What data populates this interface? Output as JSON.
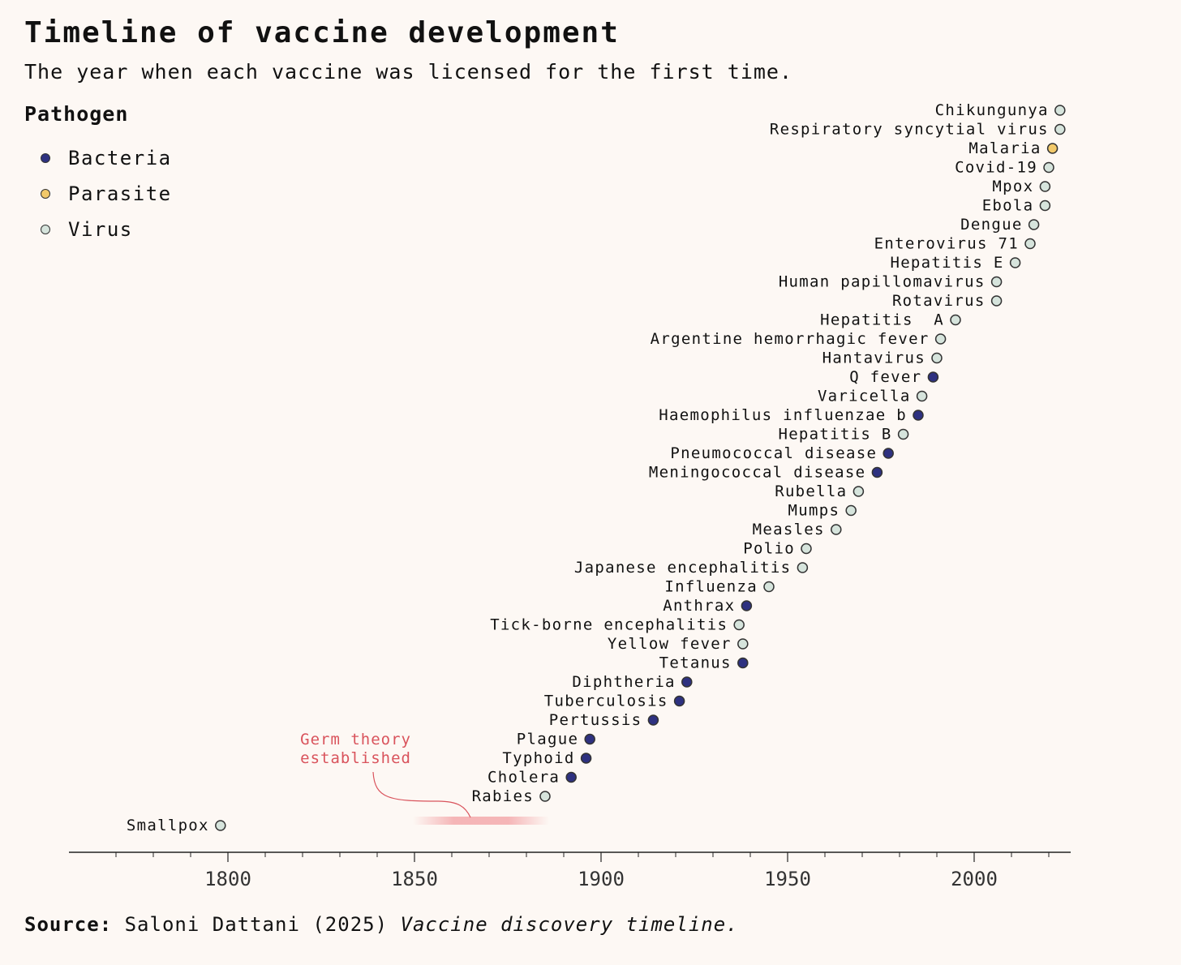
{
  "header": {
    "title": "Timeline of vaccine development",
    "subtitle": "The year when each vaccine was licensed for the first time."
  },
  "legend": {
    "title": "Pathogen",
    "items": [
      {
        "label": "Bacteria",
        "color": "#2e3180"
      },
      {
        "label": "Parasite",
        "color": "#f2c96a"
      },
      {
        "label": "Virus",
        "color": "#d6e4dc"
      }
    ]
  },
  "footer": {
    "source_label": "Source:",
    "source_text": "Saloni Dattani (2025)",
    "source_title": "Vaccine discovery timeline."
  },
  "chart_data": {
    "type": "scatter",
    "title": "Timeline of vaccine development",
    "subtitle": "The year when each vaccine was licensed for the first time.",
    "xlabel": "",
    "ylabel": "",
    "xlim": [
      1757,
      2026
    ],
    "xticks": [
      1800,
      1850,
      1900,
      1950,
      2000
    ],
    "x_minor_step": 10,
    "grid": false,
    "legend_placement": "top-left",
    "annotation": {
      "text_lines": [
        "Germ theory",
        "established"
      ],
      "x_range": [
        1855,
        1885
      ],
      "color": "#d9535c"
    },
    "points": [
      {
        "name": "Smallpox",
        "year": 1798,
        "type": "Virus"
      },
      {
        "name": "Rabies",
        "year": 1885,
        "type": "Virus"
      },
      {
        "name": "Cholera",
        "year": 1892,
        "type": "Bacteria"
      },
      {
        "name": "Typhoid",
        "year": 1896,
        "type": "Bacteria"
      },
      {
        "name": "Plague",
        "year": 1897,
        "type": "Bacteria"
      },
      {
        "name": "Pertussis",
        "year": 1914,
        "type": "Bacteria"
      },
      {
        "name": "Tuberculosis",
        "year": 1921,
        "type": "Bacteria"
      },
      {
        "name": "Diphtheria",
        "year": 1923,
        "type": "Bacteria"
      },
      {
        "name": "Tetanus",
        "year": 1938,
        "type": "Bacteria"
      },
      {
        "name": "Yellow fever",
        "year": 1938,
        "type": "Virus"
      },
      {
        "name": "Tick-borne encephalitis",
        "year": 1937,
        "type": "Virus"
      },
      {
        "name": "Anthrax",
        "year": 1939,
        "type": "Bacteria"
      },
      {
        "name": "Influenza",
        "year": 1945,
        "type": "Virus"
      },
      {
        "name": "Japanese encephalitis",
        "year": 1954,
        "type": "Virus"
      },
      {
        "name": "Polio",
        "year": 1955,
        "type": "Virus"
      },
      {
        "name": "Measles",
        "year": 1963,
        "type": "Virus"
      },
      {
        "name": "Mumps",
        "year": 1967,
        "type": "Virus"
      },
      {
        "name": "Rubella",
        "year": 1969,
        "type": "Virus"
      },
      {
        "name": "Meningococcal disease",
        "year": 1974,
        "type": "Bacteria"
      },
      {
        "name": "Pneumococcal disease",
        "year": 1977,
        "type": "Bacteria"
      },
      {
        "name": "Hepatitis B",
        "year": 1981,
        "type": "Virus"
      },
      {
        "name": "Haemophilus influenzae b",
        "year": 1985,
        "type": "Bacteria"
      },
      {
        "name": "Varicella",
        "year": 1986,
        "type": "Virus"
      },
      {
        "name": "Q fever",
        "year": 1989,
        "type": "Bacteria"
      },
      {
        "name": "Hantavirus",
        "year": 1990,
        "type": "Virus"
      },
      {
        "name": "Argentine hemorrhagic fever",
        "year": 1991,
        "type": "Virus"
      },
      {
        "name": "Hepatitis  A",
        "year": 1995,
        "type": "Virus"
      },
      {
        "name": "Rotavirus",
        "year": 2006,
        "type": "Virus"
      },
      {
        "name": "Human papillomavirus",
        "year": 2006,
        "type": "Virus"
      },
      {
        "name": "Hepatitis E",
        "year": 2011,
        "type": "Virus"
      },
      {
        "name": "Enterovirus 71",
        "year": 2015,
        "type": "Virus"
      },
      {
        "name": "Dengue",
        "year": 2016,
        "type": "Virus"
      },
      {
        "name": "Ebola",
        "year": 2019,
        "type": "Virus"
      },
      {
        "name": "Mpox",
        "year": 2019,
        "type": "Virus"
      },
      {
        "name": "Covid-19",
        "year": 2020,
        "type": "Virus"
      },
      {
        "name": "Malaria",
        "year": 2021,
        "type": "Parasite"
      },
      {
        "name": "Respiratory syncytial virus",
        "year": 2023,
        "type": "Virus"
      },
      {
        "name": "Chikungunya",
        "year": 2023,
        "type": "Virus"
      }
    ]
  }
}
